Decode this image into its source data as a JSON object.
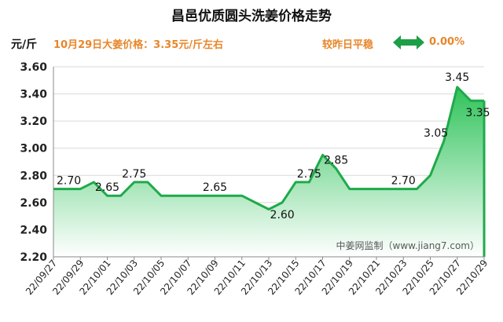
{
  "header": {
    "title": "昌邑优质圆头洗姜价格走势",
    "unit": "元/斤",
    "price_line": "10月29日大姜价格：3.35元/斤左右",
    "status_text": "较昨日平稳",
    "change_value": "0.00%"
  },
  "colors": {
    "line": "#1faa4b",
    "fill_top": "#2fc35a",
    "fill_bottom": "#ffffff",
    "accent": "#e8862a",
    "icon": "#1e9e46",
    "grid": "#d9d9d9"
  },
  "icons": {
    "change": "double-arrow-icon"
  },
  "chart_data": {
    "type": "area",
    "title": "昌邑优质圆头洗姜价格走势",
    "ylabel": "元/斤",
    "ylim": [
      2.2,
      3.6
    ],
    "yticks": [
      "2.20",
      "2.40",
      "2.60",
      "2.80",
      "3.00",
      "3.20",
      "3.40",
      "3.60"
    ],
    "xtick_labels": [
      "22/09/27",
      "22/09/29",
      "22/10/01",
      "22/10/03",
      "22/10/05",
      "22/10/07",
      "22/10/09",
      "22/10/11",
      "22/10/13",
      "22/10/15",
      "22/10/17",
      "22/10/19",
      "22/10/21",
      "22/10/23",
      "22/10/25",
      "22/10/27",
      "22/10/29"
    ],
    "x": [
      "22/09/27",
      "22/09/28",
      "22/09/29",
      "22/09/30",
      "22/10/01",
      "22/10/02",
      "22/10/03",
      "22/10/04",
      "22/10/05",
      "22/10/06",
      "22/10/07",
      "22/10/08",
      "22/10/09",
      "22/10/10",
      "22/10/11",
      "22/10/12",
      "22/10/13",
      "22/10/14",
      "22/10/15",
      "22/10/16",
      "22/10/17",
      "22/10/18",
      "22/10/19",
      "22/10/20",
      "22/10/21",
      "22/10/22",
      "22/10/23",
      "22/10/24",
      "22/10/25",
      "22/10/26",
      "22/10/27",
      "22/10/28",
      "22/10/29"
    ],
    "values": [
      2.7,
      2.7,
      2.7,
      2.75,
      2.65,
      2.65,
      2.75,
      2.75,
      2.65,
      2.65,
      2.65,
      2.65,
      2.65,
      2.65,
      2.65,
      2.6,
      2.55,
      2.6,
      2.75,
      2.75,
      2.95,
      2.85,
      2.7,
      2.7,
      2.7,
      2.7,
      2.7,
      2.7,
      2.8,
      3.05,
      3.45,
      3.35,
      3.35
    ],
    "data_labels": [
      {
        "x": "22/09/27",
        "value": "2.70"
      },
      {
        "x": "22/10/01",
        "value": "2.65"
      },
      {
        "x": "22/10/03",
        "value": "2.75"
      },
      {
        "x": "22/10/09",
        "value": "2.65"
      },
      {
        "x": "22/10/14",
        "value": "2.60"
      },
      {
        "x": "22/10/16",
        "value": "2.75"
      },
      {
        "x": "22/10/18",
        "value": "2.85"
      },
      {
        "x": "22/10/23",
        "value": "2.70"
      },
      {
        "x": "22/10/26",
        "value": "3.05"
      },
      {
        "x": "22/10/27",
        "value": "3.45"
      },
      {
        "x": "22/10/29",
        "value": "3.35"
      }
    ],
    "watermark": "中姜网监制（www.jiang7.com）",
    "grid": true
  }
}
